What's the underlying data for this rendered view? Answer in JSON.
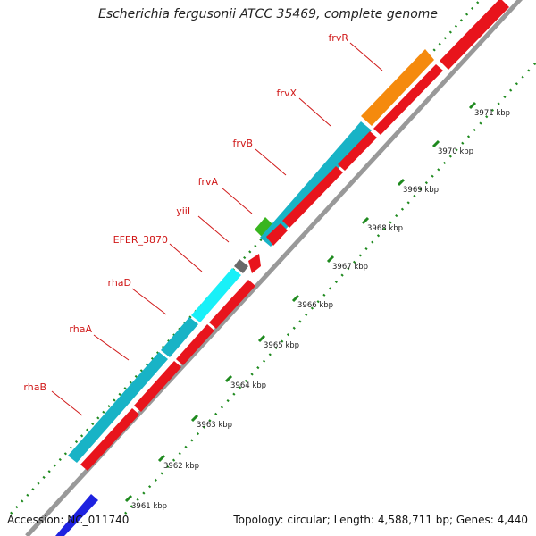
{
  "header": {
    "title": "Escherichia fergusonii ATCC 35469, complete genome"
  },
  "footer": {
    "accession": "Accession: NC_011740",
    "summary": "Topology: circular; Length: 4,588,711 bp; Genes: 4,440"
  },
  "colors": {
    "cds_forward": "#18b3c6",
    "cds_reverse": "#e8141c",
    "highlight_cyan": "#19f0f8",
    "orange": "#f58a0d",
    "green": "#39b51f",
    "gray_gene": "#6a6a6a",
    "blue_gene": "#1e22e0",
    "backbone": "#999999",
    "tick": "#1f8a1f",
    "label": "#d01818"
  },
  "ruler": {
    "ticks": [
      "3961 kbp",
      "3962 kbp",
      "3963 kbp",
      "3964 kbp",
      "3965 kbp",
      "3966 kbp",
      "3967 kbp",
      "3968 kbp",
      "3969 kbp",
      "3970 kbp",
      "3971 kbp"
    ]
  },
  "gene_labels": [
    "rhaB",
    "rhaA",
    "rhaD",
    "EFER_3870",
    "yiiL",
    "frvA",
    "frvB",
    "frvX",
    "frvR"
  ]
}
